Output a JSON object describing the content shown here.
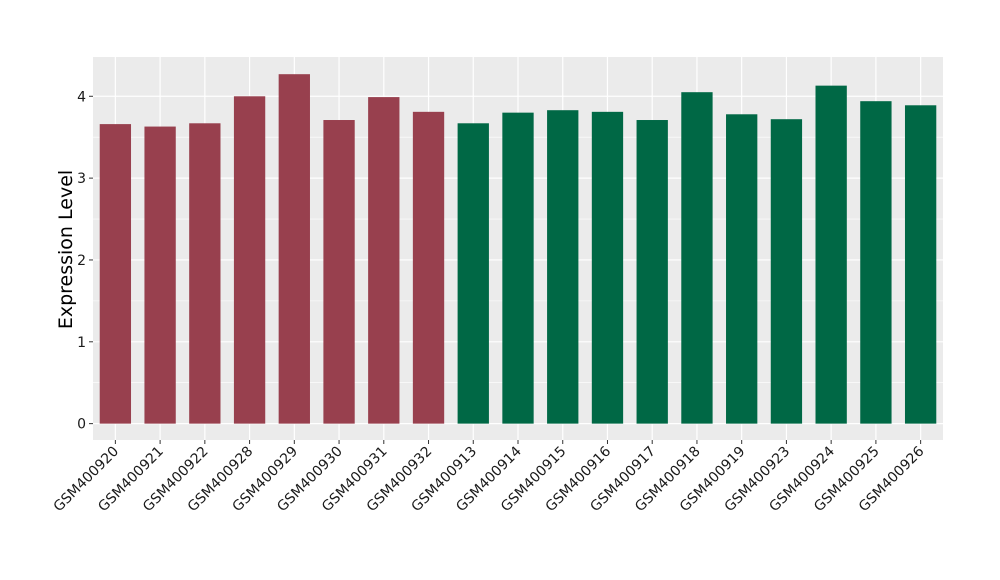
{
  "chart_data": {
    "type": "bar",
    "title": "",
    "xlabel": "",
    "ylabel": "Expression Level",
    "ylim": [
      -0.2,
      4.48
    ],
    "y_ticks": [
      0,
      1,
      2,
      3,
      4
    ],
    "grid": true,
    "legend": "none",
    "categories": [
      "GSM400920",
      "GSM400921",
      "GSM400922",
      "GSM400928",
      "GSM400929",
      "GSM400930",
      "GSM400931",
      "GSM400932",
      "GSM400913",
      "GSM400914",
      "GSM400915",
      "GSM400916",
      "GSM400917",
      "GSM400918",
      "GSM400919",
      "GSM400923",
      "GSM400924",
      "GSM400925",
      "GSM400926"
    ],
    "values": [
      3.66,
      3.63,
      3.67,
      4.0,
      4.27,
      3.71,
      3.99,
      3.81,
      3.67,
      3.8,
      3.83,
      3.81,
      3.71,
      4.05,
      3.78,
      3.72,
      4.13,
      3.94,
      3.89
    ],
    "bar_colors": [
      "#98404e",
      "#98404e",
      "#98404e",
      "#98404e",
      "#98404e",
      "#98404e",
      "#98404e",
      "#98404e",
      "#006845",
      "#006845",
      "#006845",
      "#006845",
      "#006845",
      "#006845",
      "#006845",
      "#006845",
      "#006845",
      "#006845",
      "#006845"
    ],
    "panel_color": "#ebebeb",
    "grid_color": "#ffffff"
  }
}
